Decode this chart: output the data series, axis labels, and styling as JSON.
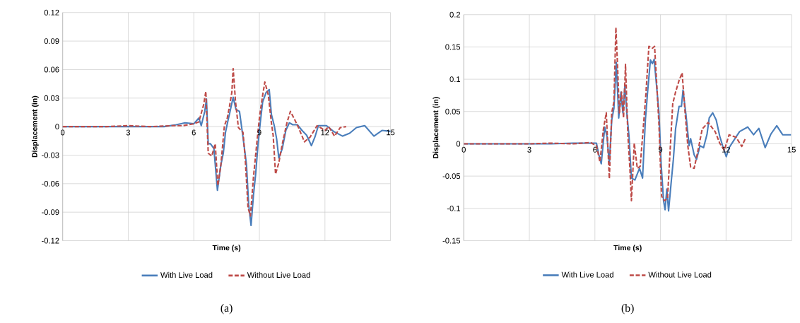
{
  "chart_data": [
    {
      "type": "line",
      "xlabel": "Time (s)",
      "ylabel": "Displacement (in)",
      "xlim": [
        0,
        15
      ],
      "ylim": [
        -0.12,
        0.12
      ],
      "xticks": [
        0,
        3,
        6,
        9,
        12,
        15
      ],
      "yticks": [
        -0.12,
        -0.09,
        -0.06,
        -0.03,
        0,
        0.03,
        0.06,
        0.09,
        0.12
      ],
      "grid": true,
      "legend": "bottom",
      "annotations": [
        "(a)"
      ],
      "series": [
        {
          "name": "With Live Load",
          "color": "#4a7ebb",
          "line_style": "solid",
          "x": [
            0,
            1,
            2,
            3,
            4,
            4.64,
            5.2,
            5.6,
            6.0,
            6.23,
            6.34,
            6.5,
            6.58,
            6.66,
            6.76,
            6.92,
            7.08,
            7.24,
            7.35,
            7.45,
            7.56,
            7.66,
            7.8,
            7.93,
            8.09,
            8.25,
            8.41,
            8.51,
            8.62,
            8.73,
            8.83,
            8.94,
            9.04,
            9.15,
            9.31,
            9.45,
            9.55,
            9.68,
            9.79,
            9.89,
            10.05,
            10.21,
            10.37,
            10.53,
            10.74,
            10.95,
            11.16,
            11.38,
            11.54,
            11.7,
            12.07,
            12.39,
            12.81,
            13.13,
            13.44,
            13.82,
            14.24,
            14.61,
            15
          ],
          "values": [
            0,
            0,
            0,
            0,
            0,
            0,
            0.002,
            0.004,
            0.003,
            0.009,
            0.001,
            0.016,
            0.029,
            -0.018,
            -0.018,
            -0.023,
            -0.067,
            -0.04,
            -0.028,
            -0.006,
            0.006,
            0.016,
            0.031,
            0.018,
            0.016,
            -0.011,
            -0.04,
            -0.082,
            -0.104,
            -0.072,
            -0.05,
            -0.018,
            0.004,
            0.026,
            0.036,
            0.039,
            0.013,
            0.001,
            -0.013,
            -0.033,
            -0.023,
            -0.004,
            0.004,
            0.002,
            0.002,
            -0.004,
            -0.009,
            -0.02,
            -0.011,
            0.001,
            0.001,
            -0.005,
            -0.01,
            -0.007,
            -0.001,
            0.001,
            -0.01,
            -0.004,
            -0.005
          ]
        },
        {
          "name": "Without Live Load",
          "color": "#be4b48",
          "line_style": "dashed",
          "x": [
            0,
            1,
            2,
            3,
            4,
            5,
            5.5,
            6.0,
            6.23,
            6.45,
            6.55,
            6.66,
            6.82,
            6.98,
            7.1,
            7.24,
            7.4,
            7.53,
            7.63,
            7.74,
            7.8,
            7.91,
            8.04,
            8.25,
            8.35,
            8.48,
            8.59,
            8.73,
            8.88,
            9.01,
            9.15,
            9.25,
            9.41,
            9.55,
            9.63,
            9.74,
            9.89,
            10.05,
            10.26,
            10.42,
            10.58,
            10.79,
            11.06,
            11.32,
            11.64,
            12.0,
            12.17,
            12.44,
            12.7,
            12.97
          ],
          "values": [
            0,
            0,
            0,
            0.001,
            0,
            0.001,
            0.001,
            0.003,
            0.005,
            0.023,
            0.037,
            -0.028,
            -0.031,
            -0.018,
            -0.062,
            -0.04,
            0.001,
            0.009,
            0.021,
            0.036,
            0.061,
            0.026,
            -0.001,
            -0.006,
            -0.033,
            -0.085,
            -0.094,
            -0.053,
            -0.018,
            0.011,
            0.033,
            0.047,
            0.033,
            0.004,
            -0.009,
            -0.05,
            -0.038,
            -0.018,
            0.004,
            0.016,
            0.009,
            -0.001,
            -0.016,
            -0.011,
            0.001,
            -0.004,
            0,
            -0.01,
            -0.001,
            0
          ]
        }
      ]
    },
    {
      "type": "line",
      "xlabel": "Time (s)",
      "ylabel": "Displacement (in)",
      "xlim": [
        0,
        15
      ],
      "ylim": [
        -0.15,
        0.2
      ],
      "xticks": [
        0,
        3,
        6,
        9,
        12,
        15
      ],
      "yticks": [
        -0.15,
        -0.1,
        -0.05,
        0,
        0.05,
        0.1,
        0.15,
        0.2
      ],
      "grid": true,
      "legend": "bottom",
      "annotations": [
        "(b)"
      ],
      "series": [
        {
          "name": "With Live Load",
          "color": "#4a7ebb",
          "line_style": "solid",
          "x": [
            0,
            1,
            2,
            3,
            4,
            5,
            5.8,
            6.07,
            6.18,
            6.29,
            6.45,
            6.55,
            6.66,
            6.77,
            6.87,
            6.98,
            7.09,
            7.19,
            7.28,
            7.37,
            7.46,
            7.56,
            7.67,
            7.83,
            8.04,
            8.18,
            8.31,
            8.41,
            8.54,
            8.63,
            8.71,
            8.82,
            8.93,
            9.03,
            9.14,
            9.21,
            9.29,
            9.37,
            9.48,
            9.59,
            9.69,
            9.85,
            9.96,
            10.03,
            10.17,
            10.31,
            10.38,
            10.54,
            10.65,
            10.81,
            10.97,
            11.13,
            11.23,
            11.39,
            11.55,
            11.71,
            11.87,
            12.01,
            12.14,
            12.35,
            12.62,
            12.99,
            13.26,
            13.5,
            13.79,
            14.05,
            14.32,
            14.59,
            14.97
          ],
          "values": [
            0,
            0,
            0,
            0,
            0,
            0.001,
            0.001,
            0.001,
            -0.017,
            -0.031,
            0.026,
            0.012,
            -0.031,
            0.037,
            0.055,
            0.126,
            0.04,
            0.08,
            0.048,
            0.09,
            0.048,
            0.012,
            -0.053,
            -0.056,
            -0.038,
            -0.053,
            0.037,
            0.08,
            0.13,
            0.124,
            0.131,
            0.09,
            0.048,
            -0.031,
            -0.088,
            -0.102,
            -0.07,
            -0.104,
            -0.063,
            -0.024,
            0.023,
            0.058,
            0.058,
            0.083,
            0.044,
            -0.003,
            0.008,
            -0.017,
            -0.024,
            -0.003,
            -0.006,
            0.015,
            0.04,
            0.048,
            0.037,
            0.012,
            -0.006,
            -0.02,
            -0.006,
            0.005,
            0.019,
            0.026,
            0.014,
            0.024,
            -0.006,
            0.015,
            0.028,
            0.014,
            0.014
          ]
        },
        {
          "name": "Without Live Load",
          "color": "#be4b48",
          "line_style": "dashed",
          "x": [
            0,
            1,
            2,
            3,
            4,
            5,
            5.8,
            6.07,
            6.23,
            6.39,
            6.52,
            6.66,
            6.77,
            6.87,
            6.96,
            7.03,
            7.12,
            7.22,
            7.31,
            7.4,
            7.51,
            7.6,
            7.67,
            7.8,
            7.94,
            8.07,
            8.2,
            8.33,
            8.47,
            8.63,
            8.73,
            8.82,
            8.93,
            9.05,
            9.18,
            9.32,
            9.43,
            9.56,
            9.69,
            9.85,
            9.99,
            10.12,
            10.25,
            10.38,
            10.54,
            10.7,
            10.91,
            11.18,
            11.5,
            11.71,
            11.92,
            12.14,
            12.46,
            12.72,
            12.88
          ],
          "values": [
            0,
            0,
            0,
            0,
            0.001,
            0,
            0.002,
            -0.003,
            -0.028,
            0.023,
            0.048,
            -0.054,
            0.048,
            0.065,
            0.18,
            0.126,
            0.048,
            0.08,
            0.04,
            0.123,
            0.012,
            -0.038,
            -0.088,
            0.001,
            -0.038,
            -0.035,
            0.019,
            0.076,
            0.151,
            0.148,
            0.151,
            0.098,
            0.03,
            -0.081,
            -0.088,
            -0.085,
            -0.017,
            0.062,
            0.08,
            0.098,
            0.11,
            0.051,
            -0.003,
            -0.036,
            -0.038,
            -0.013,
            0.023,
            0.033,
            0.019,
            0.001,
            -0.01,
            0.014,
            0.01,
            -0.004,
            0.008
          ]
        }
      ]
    }
  ]
}
